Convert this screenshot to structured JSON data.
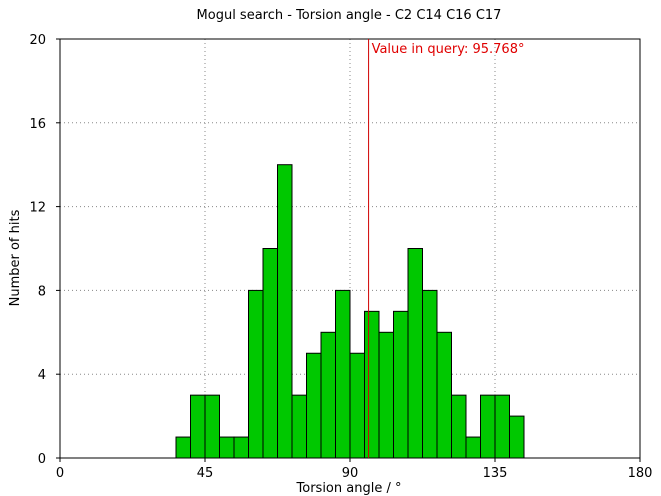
{
  "chart_data": {
    "type": "bar",
    "title": "Mogul search - Torsion angle - C2 C14 C16 C17",
    "xlabel": "Torsion angle / °",
    "ylabel": "Number of hits",
    "xlim": [
      0,
      180
    ],
    "ylim": [
      0,
      20
    ],
    "xticks": [
      "0",
      "45",
      "90",
      "135",
      "180"
    ],
    "yticks": [
      "0",
      "4",
      "8",
      "12",
      "16",
      "20"
    ],
    "grid": true,
    "bin_width": 4.5,
    "bins_start": [
      36,
      40.5,
      45,
      49.5,
      54,
      58.5,
      63,
      67.5,
      72,
      76.5,
      81,
      85.5,
      90,
      94.5,
      99,
      103.5,
      108,
      112.5,
      117,
      121.5,
      126,
      130.5,
      135,
      139.5
    ],
    "values": [
      1,
      3,
      3,
      1,
      1,
      8,
      10,
      14,
      3,
      5,
      6,
      8,
      5,
      7,
      6,
      7,
      10,
      8,
      6,
      3,
      1,
      3,
      3,
      2
    ],
    "reference": {
      "value": 95.768,
      "label": "Value in query: 95.768°",
      "color": "#e00000"
    },
    "bar_color": "#00c800"
  }
}
